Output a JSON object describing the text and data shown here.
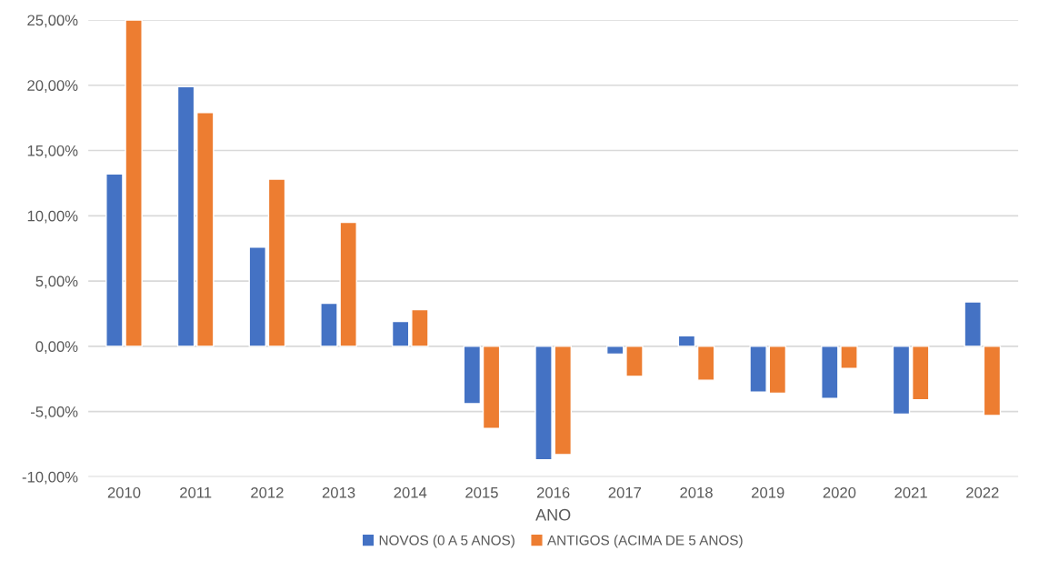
{
  "chart_data": {
    "type": "bar",
    "xlabel": "ANO",
    "categories": [
      "2010",
      "2011",
      "2012",
      "2013",
      "2014",
      "2015",
      "2016",
      "2017",
      "2018",
      "2019",
      "2020",
      "2021",
      "2022"
    ],
    "series": [
      {
        "name": "NOVOS (0 A 5 ANOS)",
        "color": "#4472c4",
        "values": [
          13.2,
          19.9,
          7.6,
          3.3,
          1.9,
          -4.4,
          -8.7,
          -0.6,
          0.8,
          -3.5,
          -4.0,
          -5.2,
          3.4
        ]
      },
      {
        "name": "ANTIGOS (ACIMA DE 5 ANOS)",
        "color": "#ed7d31",
        "values": [
          25.0,
          17.9,
          12.8,
          9.5,
          2.8,
          -6.3,
          -8.3,
          -2.3,
          -2.6,
          -3.6,
          -1.7,
          -4.1,
          -5.3
        ]
      }
    ],
    "ylim": [
      -10,
      25
    ],
    "yticks": [
      {
        "value": -10,
        "label": "-10,00%"
      },
      {
        "value": -5,
        "label": "-5,00%"
      },
      {
        "value": 0,
        "label": "0,00%"
      },
      {
        "value": 5,
        "label": "5,00%"
      },
      {
        "value": 10,
        "label": "10,00%"
      },
      {
        "value": 15,
        "label": "15,00%"
      },
      {
        "value": 20,
        "label": "20,00%"
      },
      {
        "value": 25,
        "label": "25,00%"
      }
    ],
    "grid": "y",
    "legend": "bottom"
  }
}
